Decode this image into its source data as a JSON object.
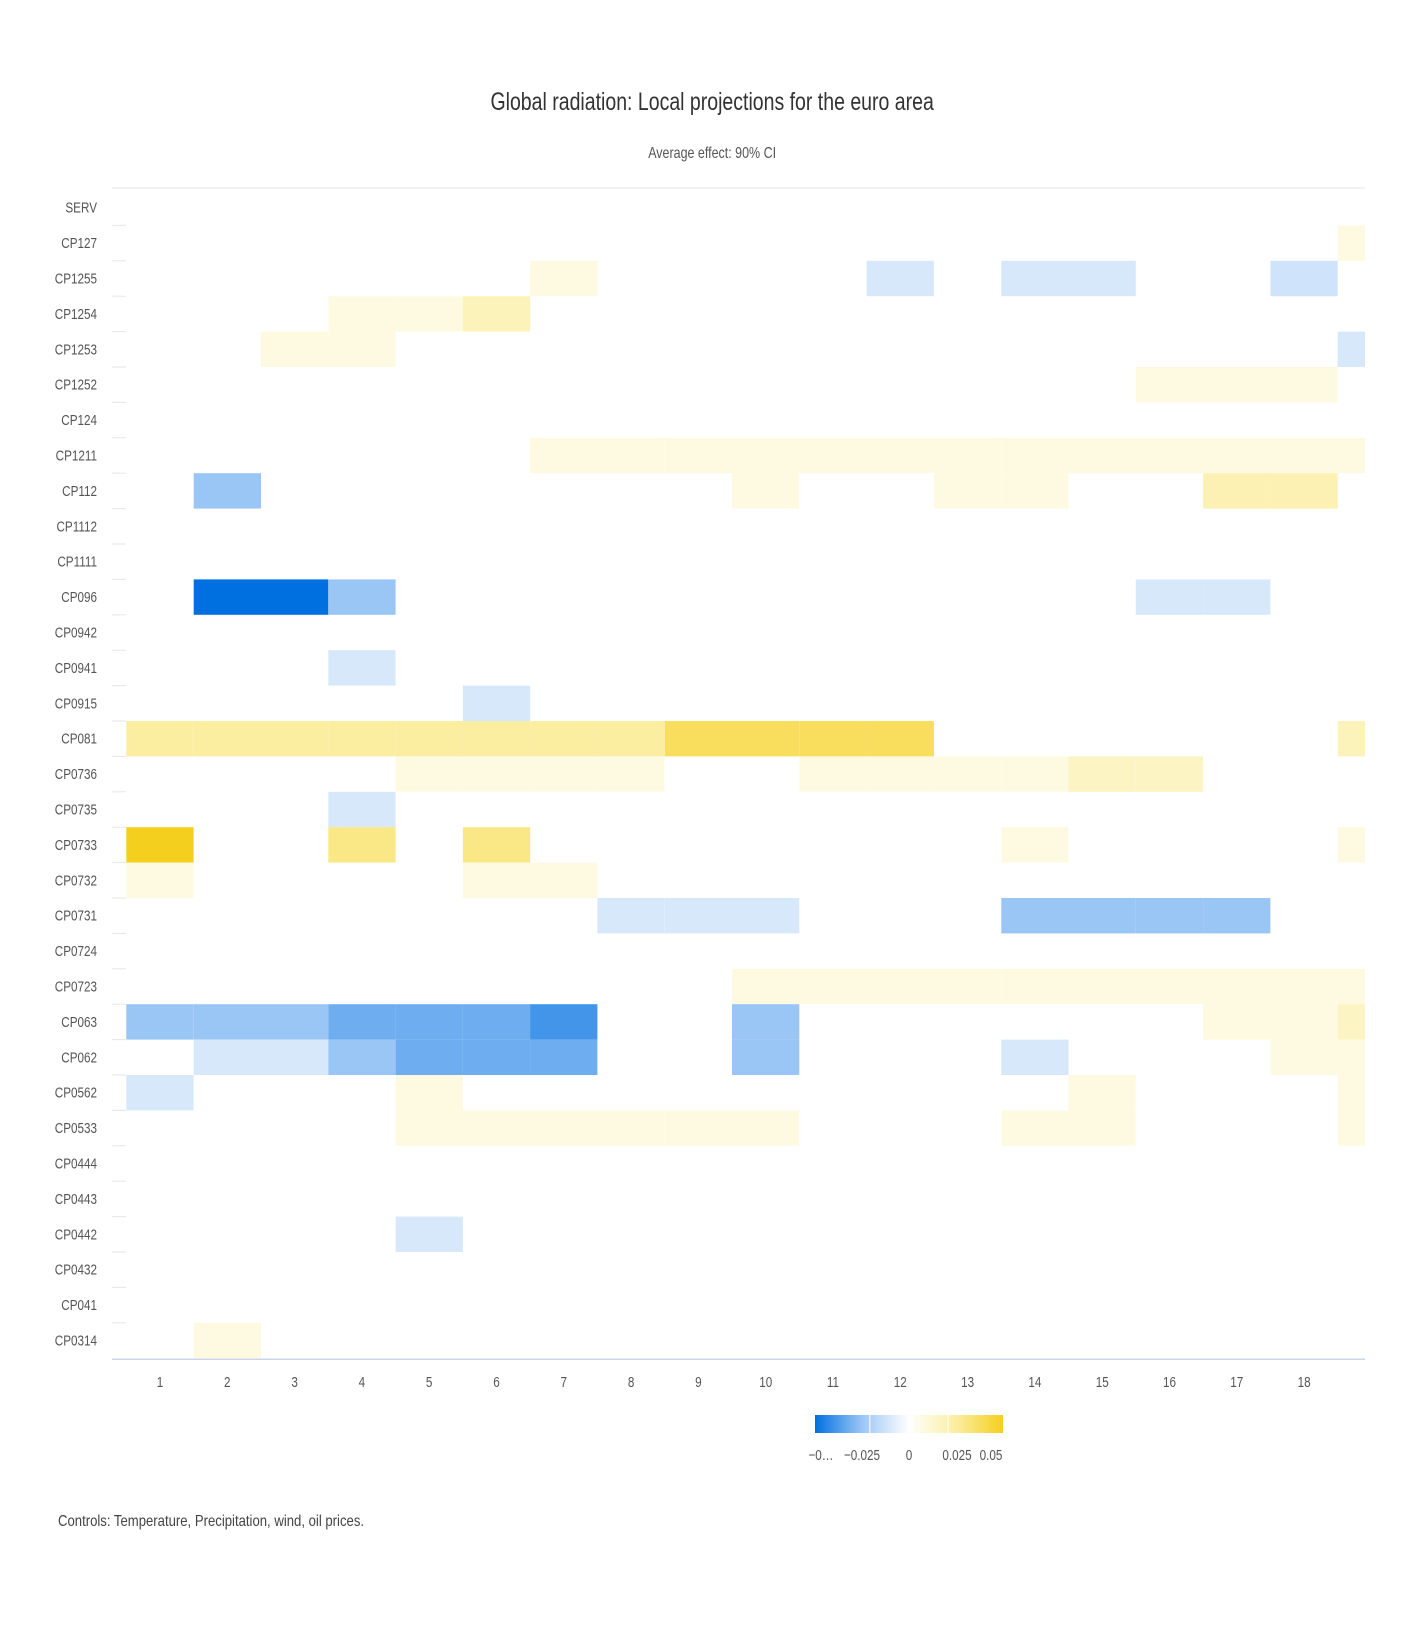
{
  "chart_data": {
    "type": "heatmap",
    "title": "Global radiation: Local projections for the euro area",
    "subtitle": "Average effect: 90% CI",
    "footer": "Controls: Temperature, Precipitation, wind, oil prices.",
    "rows": [
      "SERV",
      "CP127",
      "CP1255",
      "CP1254",
      "CP1253",
      "CP1252",
      "CP124",
      "CP1211",
      "CP112",
      "CP1112",
      "CP1111",
      "CP096",
      "CP0942",
      "CP0941",
      "CP0915",
      "CP081",
      "CP0736",
      "CP0735",
      "CP0733",
      "CP0732",
      "CP0731",
      "CP0724",
      "CP0723",
      "CP063",
      "CP062",
      "CP0562",
      "CP0533",
      "CP0444",
      "CP0443",
      "CP0442",
      "CP0432",
      "CP041",
      "CP0314"
    ],
    "columns": [
      1,
      2,
      3,
      4,
      5,
      6,
      7,
      8,
      9,
      10,
      11,
      12,
      13,
      14,
      15,
      16,
      17,
      18
    ],
    "column_tick_labels": [
      "1",
      "2",
      "3",
      "4",
      "5",
      "6",
      "7",
      "8",
      "9",
      "10",
      "11",
      "12",
      "13",
      "14",
      "15",
      "16",
      "17",
      "18"
    ],
    "note": "",
    "color_scale": {
      "min": -0.06,
      "max": 0.06,
      "stops": [
        {
          "value": -0.06,
          "color": "#0070e0"
        },
        {
          "value": -0.025,
          "color": "#9ac6f5"
        },
        {
          "value": 0,
          "color": "#ffffff"
        },
        {
          "value": 0.025,
          "color": "#fbeea0"
        },
        {
          "value": 0.05,
          "color": "#f5cf1e"
        }
      ],
      "tick_labels": [
        "−0…",
        "−0.025",
        "0",
        "0.025",
        "0.05"
      ],
      "tick_values": [
        -0.06,
        -0.025,
        0,
        0.025,
        0.05
      ]
    },
    "cells": [
      {
        "row": "CP127",
        "col": 19,
        "value": 0.008
      },
      {
        "row": "CP1255",
        "col": 7,
        "value": 0.008
      },
      {
        "row": "CP1255",
        "col": 12,
        "value": -0.01
      },
      {
        "row": "CP1255",
        "col": 14,
        "value": -0.01
      },
      {
        "row": "CP1255",
        "col": 15,
        "value": -0.01
      },
      {
        "row": "CP1255",
        "col": 18,
        "value": -0.012
      },
      {
        "row": "CP1254",
        "col": 4,
        "value": 0.008
      },
      {
        "row": "CP1254",
        "col": 5,
        "value": 0.008
      },
      {
        "row": "CP1254",
        "col": 6,
        "value": 0.018
      },
      {
        "row": "CP1253",
        "col": 3,
        "value": 0.008
      },
      {
        "row": "CP1253",
        "col": 4,
        "value": 0.008
      },
      {
        "row": "CP1253",
        "col": 19,
        "value": -0.01
      },
      {
        "row": "CP1252",
        "col": 16,
        "value": 0.008
      },
      {
        "row": "CP1252",
        "col": 17,
        "value": 0.008
      },
      {
        "row": "CP1252",
        "col": 18,
        "value": 0.008
      },
      {
        "row": "CP1211",
        "col": 7,
        "value": 0.008
      },
      {
        "row": "CP1211",
        "col": 8,
        "value": 0.008
      },
      {
        "row": "CP1211",
        "col": 9,
        "value": 0.008
      },
      {
        "row": "CP1211",
        "col": 10,
        "value": 0.008
      },
      {
        "row": "CP1211",
        "col": 11,
        "value": 0.008
      },
      {
        "row": "CP1211",
        "col": 12,
        "value": 0.008
      },
      {
        "row": "CP1211",
        "col": 13,
        "value": 0.008
      },
      {
        "row": "CP1211",
        "col": 14,
        "value": 0.008
      },
      {
        "row": "CP1211",
        "col": 15,
        "value": 0.008
      },
      {
        "row": "CP1211",
        "col": 16,
        "value": 0.008
      },
      {
        "row": "CP1211",
        "col": 17,
        "value": 0.008
      },
      {
        "row": "CP1211",
        "col": 18,
        "value": 0.008
      },
      {
        "row": "CP1211",
        "col": 19,
        "value": 0.008
      },
      {
        "row": "CP112",
        "col": 2,
        "value": -0.025
      },
      {
        "row": "CP112",
        "col": 10,
        "value": 0.008
      },
      {
        "row": "CP112",
        "col": 13,
        "value": 0.008
      },
      {
        "row": "CP112",
        "col": 14,
        "value": 0.008
      },
      {
        "row": "CP112",
        "col": 17,
        "value": 0.02
      },
      {
        "row": "CP112",
        "col": 18,
        "value": 0.02
      },
      {
        "row": "CP096",
        "col": 2,
        "value": -0.06
      },
      {
        "row": "CP096",
        "col": 3,
        "value": -0.06
      },
      {
        "row": "CP096",
        "col": 4,
        "value": -0.025
      },
      {
        "row": "CP096",
        "col": 16,
        "value": -0.01
      },
      {
        "row": "CP096",
        "col": 17,
        "value": -0.01
      },
      {
        "row": "CP0941",
        "col": 4,
        "value": -0.01
      },
      {
        "row": "CP0915",
        "col": 6,
        "value": -0.01
      },
      {
        "row": "CP081",
        "col": 1,
        "value": 0.025
      },
      {
        "row": "CP081",
        "col": 2,
        "value": 0.025
      },
      {
        "row": "CP081",
        "col": 3,
        "value": 0.025
      },
      {
        "row": "CP081",
        "col": 4,
        "value": 0.025
      },
      {
        "row": "CP081",
        "col": 5,
        "value": 0.025
      },
      {
        "row": "CP081",
        "col": 6,
        "value": 0.025
      },
      {
        "row": "CP081",
        "col": 7,
        "value": 0.025
      },
      {
        "row": "CP081",
        "col": 8,
        "value": 0.025
      },
      {
        "row": "CP081",
        "col": 9,
        "value": 0.038
      },
      {
        "row": "CP081",
        "col": 10,
        "value": 0.038
      },
      {
        "row": "CP081",
        "col": 11,
        "value": 0.038
      },
      {
        "row": "CP081",
        "col": 12,
        "value": 0.038
      },
      {
        "row": "CP081",
        "col": 19,
        "value": 0.018
      },
      {
        "row": "CP0736",
        "col": 5,
        "value": 0.008
      },
      {
        "row": "CP0736",
        "col": 6,
        "value": 0.008
      },
      {
        "row": "CP0736",
        "col": 7,
        "value": 0.008
      },
      {
        "row": "CP0736",
        "col": 8,
        "value": 0.008
      },
      {
        "row": "CP0736",
        "col": 11,
        "value": 0.008
      },
      {
        "row": "CP0736",
        "col": 12,
        "value": 0.008
      },
      {
        "row": "CP0736",
        "col": 13,
        "value": 0.008
      },
      {
        "row": "CP0736",
        "col": 14,
        "value": 0.008
      },
      {
        "row": "CP0736",
        "col": 15,
        "value": 0.016
      },
      {
        "row": "CP0736",
        "col": 16,
        "value": 0.016
      },
      {
        "row": "CP0735",
        "col": 4,
        "value": -0.01
      },
      {
        "row": "CP0733",
        "col": 1,
        "value": 0.05
      },
      {
        "row": "CP0733",
        "col": 4,
        "value": 0.03
      },
      {
        "row": "CP0733",
        "col": 6,
        "value": 0.03
      },
      {
        "row": "CP0733",
        "col": 14,
        "value": 0.008
      },
      {
        "row": "CP0733",
        "col": 19,
        "value": 0.008
      },
      {
        "row": "CP0732",
        "col": 1,
        "value": 0.008
      },
      {
        "row": "CP0732",
        "col": 6,
        "value": 0.008
      },
      {
        "row": "CP0732",
        "col": 7,
        "value": 0.008
      },
      {
        "row": "CP0731",
        "col": 8,
        "value": -0.01
      },
      {
        "row": "CP0731",
        "col": 9,
        "value": -0.01
      },
      {
        "row": "CP0731",
        "col": 10,
        "value": -0.01
      },
      {
        "row": "CP0731",
        "col": 14,
        "value": -0.025
      },
      {
        "row": "CP0731",
        "col": 15,
        "value": -0.025
      },
      {
        "row": "CP0731",
        "col": 16,
        "value": -0.025
      },
      {
        "row": "CP0731",
        "col": 17,
        "value": -0.025
      },
      {
        "row": "CP0723",
        "col": 10,
        "value": 0.008
      },
      {
        "row": "CP0723",
        "col": 11,
        "value": 0.008
      },
      {
        "row": "CP0723",
        "col": 12,
        "value": 0.008
      },
      {
        "row": "CP0723",
        "col": 13,
        "value": 0.008
      },
      {
        "row": "CP0723",
        "col": 14,
        "value": 0.008
      },
      {
        "row": "CP0723",
        "col": 15,
        "value": 0.008
      },
      {
        "row": "CP0723",
        "col": 16,
        "value": 0.008
      },
      {
        "row": "CP0723",
        "col": 17,
        "value": 0.008
      },
      {
        "row": "CP0723",
        "col": 18,
        "value": 0.008
      },
      {
        "row": "CP0723",
        "col": 19,
        "value": 0.008
      },
      {
        "row": "CP063",
        "col": 1,
        "value": -0.025
      },
      {
        "row": "CP063",
        "col": 2,
        "value": -0.025
      },
      {
        "row": "CP063",
        "col": 3,
        "value": -0.025
      },
      {
        "row": "CP063",
        "col": 4,
        "value": -0.035
      },
      {
        "row": "CP063",
        "col": 5,
        "value": -0.035
      },
      {
        "row": "CP063",
        "col": 6,
        "value": -0.035
      },
      {
        "row": "CP063",
        "col": 7,
        "value": -0.045
      },
      {
        "row": "CP063",
        "col": 10,
        "value": -0.025
      },
      {
        "row": "CP063",
        "col": 17,
        "value": 0.008
      },
      {
        "row": "CP063",
        "col": 18,
        "value": 0.008
      },
      {
        "row": "CP063",
        "col": 19,
        "value": 0.016
      },
      {
        "row": "CP062",
        "col": 2,
        "value": -0.01
      },
      {
        "row": "CP062",
        "col": 3,
        "value": -0.01
      },
      {
        "row": "CP062",
        "col": 4,
        "value": -0.025
      },
      {
        "row": "CP062",
        "col": 5,
        "value": -0.035
      },
      {
        "row": "CP062",
        "col": 6,
        "value": -0.035
      },
      {
        "row": "CP062",
        "col": 7,
        "value": -0.035
      },
      {
        "row": "CP062",
        "col": 10,
        "value": -0.025
      },
      {
        "row": "CP062",
        "col": 14,
        "value": -0.01
      },
      {
        "row": "CP062",
        "col": 18,
        "value": 0.008
      },
      {
        "row": "CP062",
        "col": 19,
        "value": 0.008
      },
      {
        "row": "CP0562",
        "col": 1,
        "value": -0.01
      },
      {
        "row": "CP0562",
        "col": 5,
        "value": 0.008
      },
      {
        "row": "CP0562",
        "col": 15,
        "value": 0.008
      },
      {
        "row": "CP0562",
        "col": 19,
        "value": 0.008
      },
      {
        "row": "CP0533",
        "col": 5,
        "value": 0.008
      },
      {
        "row": "CP0533",
        "col": 6,
        "value": 0.008
      },
      {
        "row": "CP0533",
        "col": 7,
        "value": 0.008
      },
      {
        "row": "CP0533",
        "col": 8,
        "value": 0.008
      },
      {
        "row": "CP0533",
        "col": 9,
        "value": 0.008
      },
      {
        "row": "CP0533",
        "col": 10,
        "value": 0.008
      },
      {
        "row": "CP0533",
        "col": 14,
        "value": 0.008
      },
      {
        "row": "CP0533",
        "col": 15,
        "value": 0.008
      },
      {
        "row": "CP0533",
        "col": 19,
        "value": 0.008
      },
      {
        "row": "CP0442",
        "col": 5,
        "value": -0.01
      },
      {
        "row": "CP0314",
        "col": 2,
        "value": 0.008
      }
    ]
  }
}
